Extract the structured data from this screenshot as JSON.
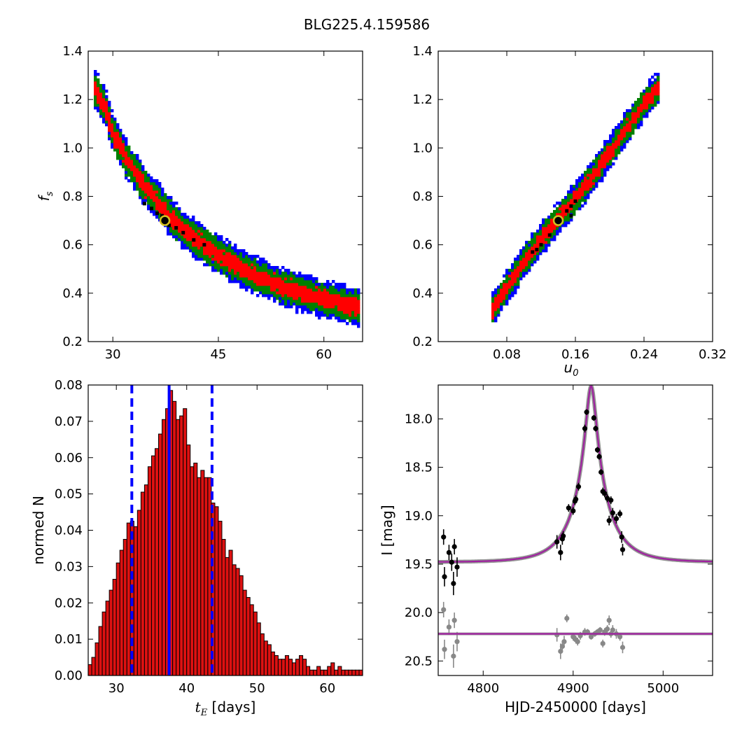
{
  "figure": {
    "suptitle": "BLG225.4.159586",
    "colors": {
      "blue": "#0000ff",
      "green": "#008000",
      "red": "#ff0000",
      "black": "#000000",
      "hist": "#dd1111",
      "model": "#a020a0",
      "gray": "#888888",
      "marker": "#d4c020"
    }
  },
  "chart_data": [
    {
      "id": "fs_vs_tE",
      "type": "heatmap",
      "xlabel": "",
      "ylabel": "f_s",
      "xlim": [
        26.5,
        65.5
      ],
      "ylim": [
        0.2,
        1.4
      ],
      "xticks": [
        30,
        45,
        60
      ],
      "yticks": [
        0.2,
        0.4,
        0.6,
        0.8,
        1.0,
        1.2,
        1.4
      ],
      "tick_labels_x": [
        "30",
        "45",
        "60"
      ],
      "tick_labels_y": [
        "0.2",
        "0.4",
        "0.6",
        "0.8",
        "1.0",
        "1.2",
        "1.4"
      ],
      "band_center": [
        [
          27.5,
          1.24
        ],
        [
          29,
          1.16
        ],
        [
          30,
          1.06
        ],
        [
          32,
          0.95
        ],
        [
          34,
          0.86
        ],
        [
          36,
          0.79
        ],
        [
          38,
          0.72
        ],
        [
          40,
          0.66
        ],
        [
          43,
          0.6
        ],
        [
          46,
          0.54
        ],
        [
          49,
          0.49
        ],
        [
          53,
          0.44
        ],
        [
          57,
          0.4
        ],
        [
          61,
          0.37
        ],
        [
          65,
          0.34
        ]
      ],
      "best_fit": [
        37.4,
        0.7
      ],
      "black_cells": [
        [
          34.5,
          0.77
        ],
        [
          35.5,
          0.75
        ],
        [
          36.3,
          0.73
        ],
        [
          37,
          0.72
        ],
        [
          38,
          0.68
        ],
        [
          39,
          0.67
        ],
        [
          40,
          0.65
        ],
        [
          41.5,
          0.62
        ],
        [
          43,
          0.6
        ]
      ]
    },
    {
      "id": "fs_vs_u0",
      "type": "heatmap",
      "xlabel": "u_0",
      "ylabel": "",
      "xlim": [
        0.0,
        0.32
      ],
      "ylim": [
        0.2,
        1.4
      ],
      "xticks": [
        0.08,
        0.16,
        0.24,
        0.32
      ],
      "yticks": [
        0.2,
        0.4,
        0.6,
        0.8,
        1.0,
        1.2,
        1.4
      ],
      "tick_labels_x": [
        "0.08",
        "0.16",
        "0.24",
        "0.32"
      ],
      "tick_labels_y": [
        "0.2",
        "0.4",
        "0.6",
        "0.8",
        "1.0",
        "1.2",
        "1.4"
      ],
      "band_center": [
        [
          0.063,
          0.33
        ],
        [
          0.08,
          0.42
        ],
        [
          0.1,
          0.53
        ],
        [
          0.12,
          0.62
        ],
        [
          0.14,
          0.71
        ],
        [
          0.16,
          0.79
        ],
        [
          0.18,
          0.88
        ],
        [
          0.2,
          0.98
        ],
        [
          0.22,
          1.08
        ],
        [
          0.24,
          1.18
        ],
        [
          0.255,
          1.24
        ]
      ],
      "best_fit": [
        0.14,
        0.7
      ],
      "black_cells": [
        [
          0.11,
          0.57
        ],
        [
          0.115,
          0.58
        ],
        [
          0.12,
          0.6
        ],
        [
          0.13,
          0.64
        ],
        [
          0.15,
          0.74
        ],
        [
          0.155,
          0.76
        ],
        [
          0.16,
          0.78
        ],
        [
          0.155,
          0.72
        ]
      ]
    },
    {
      "id": "tE_histogram",
      "type": "bar",
      "xlabel": "t_E",
      "xlabel_suffix": " [days]",
      "ylabel": "normed N",
      "xlim": [
        26,
        65
      ],
      "ylim": [
        0.0,
        0.08
      ],
      "xticks": [
        30,
        40,
        50,
        60
      ],
      "yticks": [
        0.0,
        0.01,
        0.02,
        0.03,
        0.04,
        0.05,
        0.06,
        0.07,
        0.08
      ],
      "tick_labels_x": [
        "30",
        "40",
        "50",
        "60"
      ],
      "tick_labels_y": [
        "0.00",
        "0.01",
        "0.02",
        "0.03",
        "0.04",
        "0.05",
        "0.06",
        "0.07",
        "0.08"
      ],
      "bin_start": 26,
      "bin_width": 0.5,
      "values": [
        0.003,
        0.005,
        0.009,
        0.0135,
        0.0175,
        0.0205,
        0.0235,
        0.0265,
        0.031,
        0.0345,
        0.0375,
        0.042,
        0.0425,
        0.041,
        0.0455,
        0.0505,
        0.0525,
        0.0575,
        0.0605,
        0.0625,
        0.0665,
        0.0705,
        0.0735,
        0.0785,
        0.0755,
        0.0705,
        0.0715,
        0.0735,
        0.0635,
        0.0575,
        0.0585,
        0.0545,
        0.0565,
        0.0545,
        0.0545,
        0.0475,
        0.0465,
        0.0425,
        0.0375,
        0.0325,
        0.0345,
        0.0305,
        0.0295,
        0.0275,
        0.0235,
        0.0215,
        0.0195,
        0.0175,
        0.0145,
        0.0115,
        0.0095,
        0.0085,
        0.0065,
        0.0055,
        0.0045,
        0.0045,
        0.0055,
        0.0045,
        0.0035,
        0.0045,
        0.0055,
        0.0045,
        0.0025,
        0.0015,
        0.0015,
        0.0025,
        0.0015,
        0.0015,
        0.0025,
        0.0035,
        0.0015,
        0.0025,
        0.0015,
        0.0015,
        0.0015,
        0.0015,
        0.0015,
        0.0015
      ],
      "median_line": 37.5,
      "dashed_lines": [
        32.2,
        43.6
      ]
    },
    {
      "id": "light_curve",
      "type": "scatter",
      "xlabel": "HJD-2450000 [days]",
      "ylabel": "I [mag]",
      "xlim": [
        4750,
        5055
      ],
      "ylim": [
        20.65,
        17.65
      ],
      "xticks": [
        4800,
        4900,
        5000
      ],
      "yticks": [
        18.0,
        18.5,
        19.0,
        19.5,
        20.0,
        20.5
      ],
      "tick_labels_x": [
        "4800",
        "4900",
        "5000"
      ],
      "tick_labels_y": [
        "18.0",
        "18.5",
        "19.0",
        "19.5",
        "20.0",
        "20.5"
      ],
      "model": {
        "t0": 4920,
        "tE": 37.5,
        "u0": 0.14,
        "fs": 0.7,
        "base_mag": 19.48,
        "residual_offset": 20.22
      },
      "data_points": [
        [
          4756,
          19.22,
          0.08
        ],
        [
          4757,
          19.63,
          0.1
        ],
        [
          4762,
          19.38,
          0.08
        ],
        [
          4765,
          19.48,
          0.09
        ],
        [
          4767,
          19.7,
          0.12
        ],
        [
          4768,
          19.32,
          0.08
        ],
        [
          4771,
          19.53,
          0.1
        ],
        [
          4882,
          19.27,
          0.07
        ],
        [
          4886,
          19.38,
          0.08
        ],
        [
          4888,
          19.24,
          0.06
        ],
        [
          4889,
          19.21,
          0.05
        ],
        [
          4895,
          18.92,
          0.04
        ],
        [
          4900,
          18.95,
          0.04
        ],
        [
          4902,
          18.85,
          0.04
        ],
        [
          4903,
          18.83,
          0.04
        ],
        [
          4906,
          18.7,
          0.04
        ],
        [
          4913,
          18.1,
          0.04
        ],
        [
          4915,
          17.93,
          0.03
        ],
        [
          4923,
          17.99,
          0.03
        ],
        [
          4925,
          18.1,
          0.03
        ],
        [
          4927,
          18.32,
          0.03
        ],
        [
          4929,
          18.39,
          0.03
        ],
        [
          4931,
          18.55,
          0.03
        ],
        [
          4933,
          18.75,
          0.04
        ],
        [
          4935,
          18.77,
          0.04
        ],
        [
          4938,
          18.82,
          0.04
        ],
        [
          4940,
          19.05,
          0.05
        ],
        [
          4942,
          18.84,
          0.04
        ],
        [
          4944,
          18.97,
          0.05
        ],
        [
          4948,
          19.03,
          0.05
        ],
        [
          4952,
          18.98,
          0.04
        ],
        [
          4954,
          19.22,
          0.06
        ],
        [
          4955,
          19.35,
          0.06
        ]
      ],
      "residual_points": [
        [
          4756,
          19.97,
          0.08
        ],
        [
          4757,
          20.38,
          0.1
        ],
        [
          4762,
          20.15,
          0.08
        ],
        [
          4767,
          20.45,
          0.12
        ],
        [
          4768,
          20.08,
          0.08
        ],
        [
          4771,
          20.3,
          0.1
        ],
        [
          4882,
          20.23,
          0.07
        ],
        [
          4886,
          20.4,
          0.08
        ],
        [
          4888,
          20.35,
          0.06
        ],
        [
          4890,
          20.3,
          0.06
        ],
        [
          4893,
          20.06,
          0.04
        ],
        [
          4900,
          20.25,
          0.04
        ],
        [
          4903,
          20.28,
          0.04
        ],
        [
          4905,
          20.3,
          0.04
        ],
        [
          4908,
          20.24,
          0.04
        ],
        [
          4913,
          20.2,
          0.04
        ],
        [
          4916,
          20.2,
          0.03
        ],
        [
          4920,
          20.25,
          0.03
        ],
        [
          4924,
          20.22,
          0.03
        ],
        [
          4927,
          20.2,
          0.03
        ],
        [
          4930,
          20.18,
          0.03
        ],
        [
          4933,
          20.32,
          0.04
        ],
        [
          4935,
          20.2,
          0.04
        ],
        [
          4938,
          20.17,
          0.04
        ],
        [
          4940,
          20.08,
          0.05
        ],
        [
          4942,
          20.22,
          0.04
        ],
        [
          4944,
          20.18,
          0.05
        ],
        [
          4948,
          20.22,
          0.05
        ],
        [
          4952,
          20.25,
          0.04
        ],
        [
          4955,
          20.36,
          0.06
        ]
      ]
    }
  ]
}
